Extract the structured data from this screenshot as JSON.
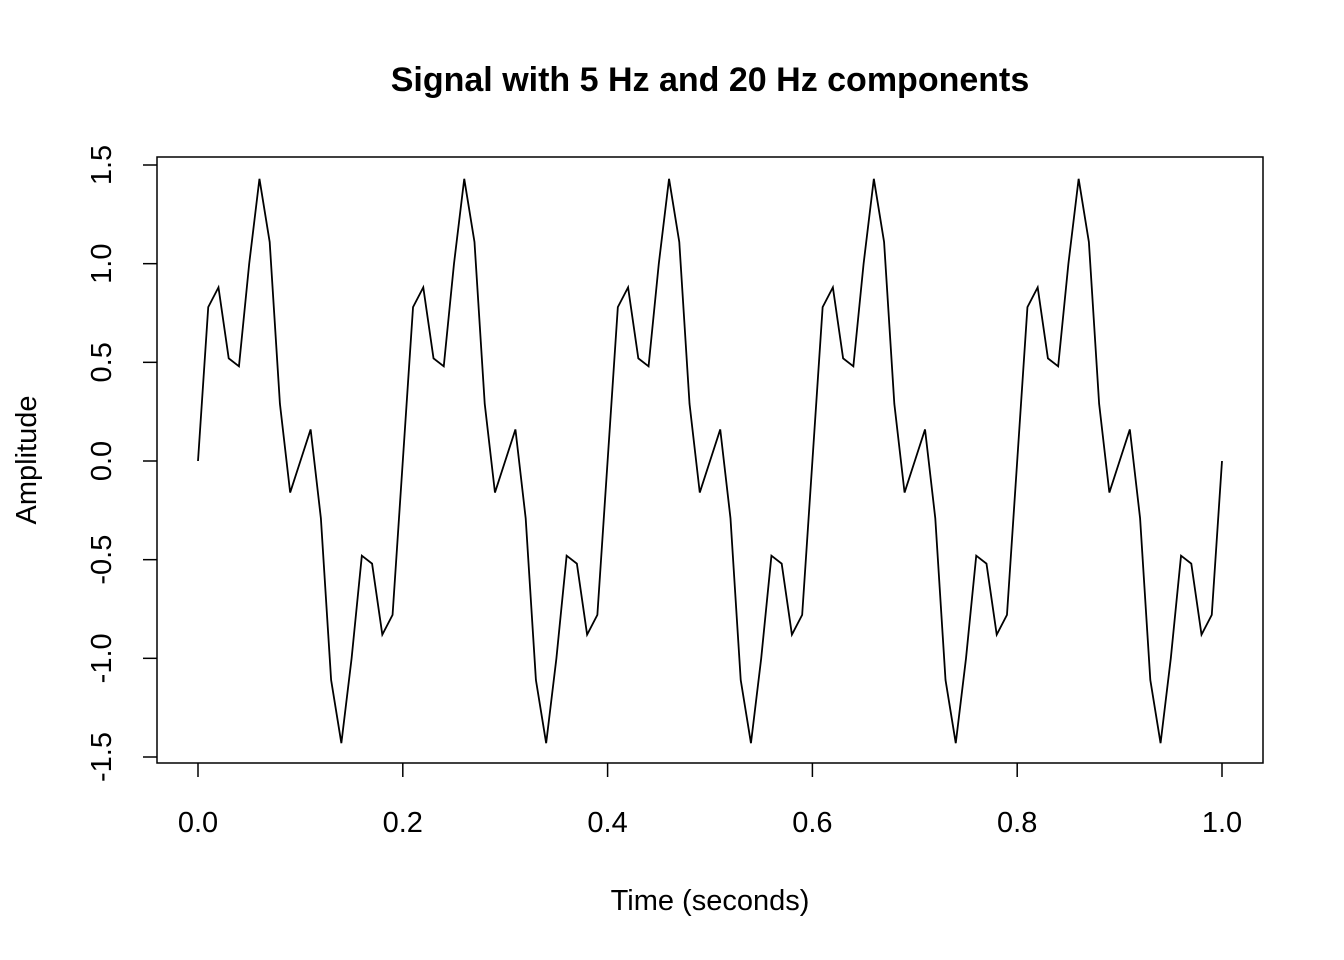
{
  "chart_data": {
    "type": "line",
    "title": "Signal with 5 Hz and 20 Hz components",
    "xlabel": "Time (seconds)",
    "ylabel": "Amplitude",
    "xlim": [
      0,
      1
    ],
    "ylim": [
      -1.5,
      1.5
    ],
    "x_ticks": [
      "0.0",
      "0.2",
      "0.4",
      "0.6",
      "0.8",
      "1.0"
    ],
    "y_ticks": [
      "-1.5",
      "-1.0",
      "-0.5",
      "0.0",
      "0.5",
      "1.0",
      "1.5"
    ],
    "grid": false,
    "legend": "none",
    "line_color": "#000000",
    "series": [
      {
        "x": [
          0.0,
          0.01,
          0.02,
          0.03,
          0.04,
          0.05,
          0.06,
          0.07,
          0.08,
          0.09,
          0.1,
          0.11,
          0.12,
          0.13,
          0.14,
          0.15,
          0.16,
          0.17,
          0.18,
          0.19,
          0.2,
          0.21,
          0.22,
          0.23,
          0.24,
          0.25,
          0.26,
          0.27,
          0.28,
          0.29,
          0.3,
          0.31,
          0.32,
          0.33,
          0.34,
          0.35,
          0.36,
          0.37,
          0.38,
          0.39,
          0.4,
          0.41,
          0.42,
          0.43,
          0.44,
          0.45,
          0.46,
          0.47,
          0.48,
          0.49,
          0.5,
          0.51,
          0.52,
          0.53,
          0.54,
          0.55,
          0.56,
          0.57,
          0.58,
          0.59,
          0.6,
          0.61,
          0.62,
          0.63,
          0.64,
          0.65,
          0.66,
          0.67,
          0.68,
          0.69,
          0.7,
          0.71,
          0.72,
          0.73,
          0.74,
          0.75,
          0.76,
          0.77,
          0.78,
          0.79,
          0.8,
          0.81,
          0.82,
          0.83,
          0.84,
          0.85,
          0.86,
          0.87,
          0.88,
          0.89,
          0.9,
          0.91,
          0.92,
          0.93,
          0.94,
          0.95,
          0.96,
          0.97,
          0.98,
          0.99,
          1.0
        ],
        "values": [
          0.0,
          0.78,
          0.88,
          0.52,
          0.48,
          1.0,
          1.43,
          1.11,
          0.29,
          -0.16,
          0.0,
          0.16,
          -0.29,
          -1.11,
          -1.43,
          -1.0,
          -0.48,
          -0.52,
          -0.88,
          -0.78,
          0.0,
          0.78,
          0.88,
          0.52,
          0.48,
          1.0,
          1.43,
          1.11,
          0.29,
          -0.16,
          0.0,
          0.16,
          -0.29,
          -1.11,
          -1.43,
          -1.0,
          -0.48,
          -0.52,
          -0.88,
          -0.78,
          0.0,
          0.78,
          0.88,
          0.52,
          0.48,
          1.0,
          1.43,
          1.11,
          0.29,
          -0.16,
          0.0,
          0.16,
          -0.29,
          -1.11,
          -1.43,
          -1.0,
          -0.48,
          -0.52,
          -0.88,
          -0.78,
          0.0,
          0.78,
          0.88,
          0.52,
          0.48,
          1.0,
          1.43,
          1.11,
          0.29,
          -0.16,
          0.0,
          0.16,
          -0.29,
          -1.11,
          -1.43,
          -1.0,
          -0.48,
          -0.52,
          -0.88,
          -0.78,
          0.0,
          0.78,
          0.88,
          0.52,
          0.48,
          1.0,
          1.43,
          1.11,
          0.29,
          -0.16,
          0.0,
          0.16,
          -0.29,
          -1.11,
          -1.43,
          -1.0,
          -0.48,
          -0.52,
          -0.88,
          -0.78,
          0.0
        ]
      }
    ]
  }
}
